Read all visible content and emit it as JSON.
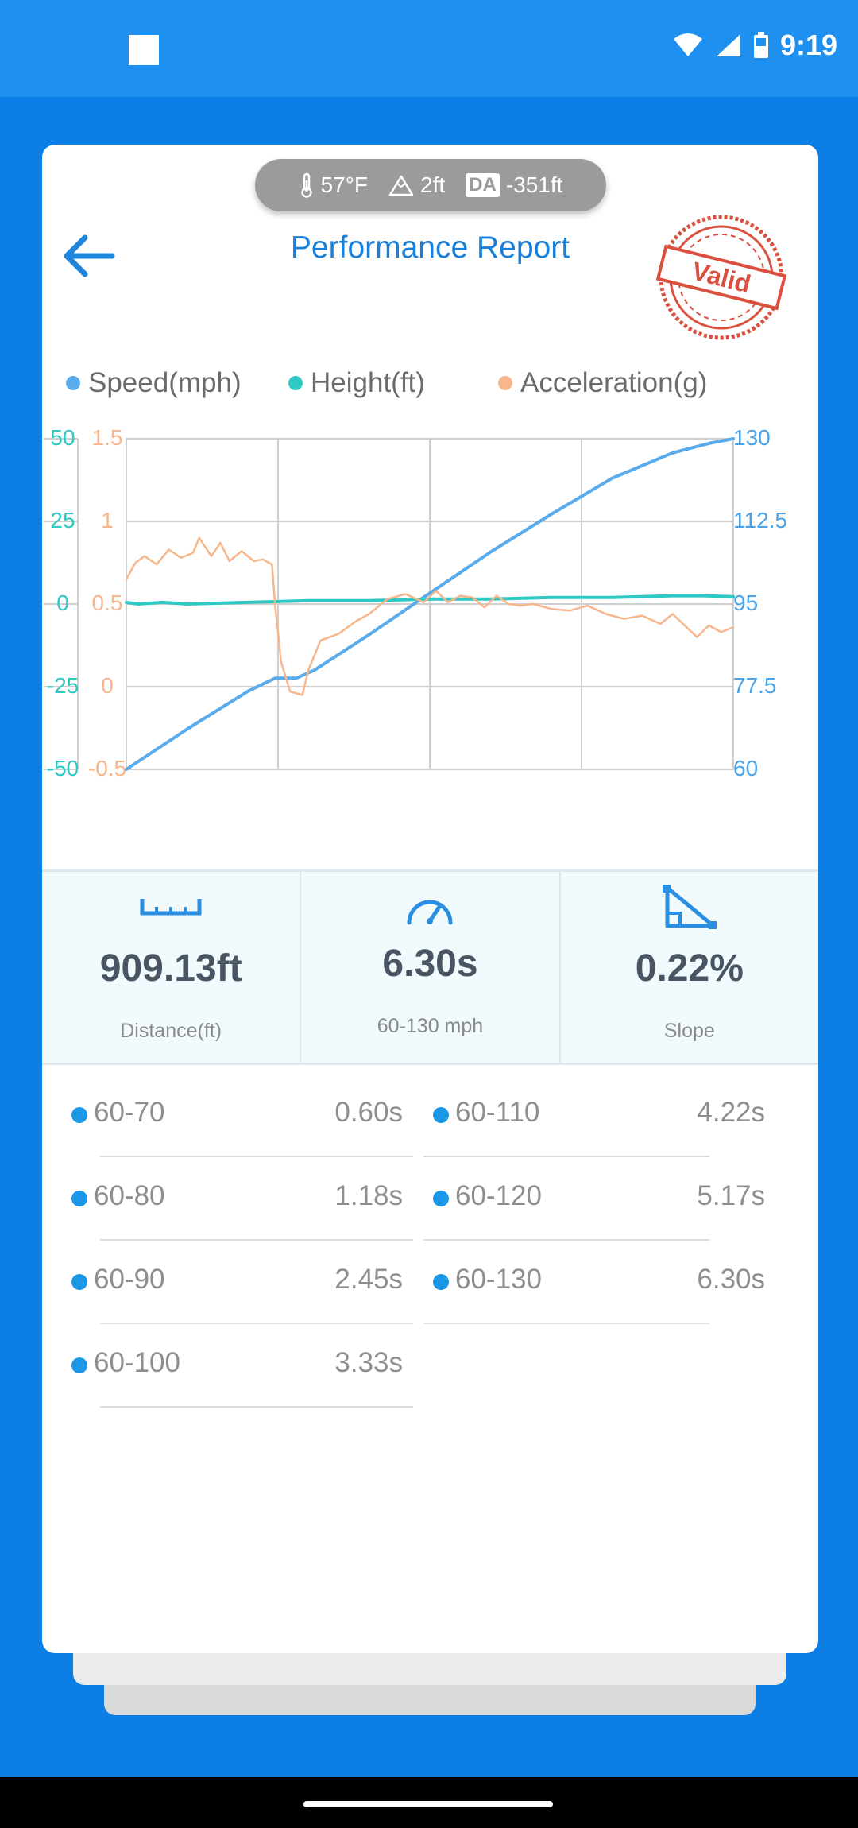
{
  "status_bar": {
    "time": "9:19"
  },
  "header": {
    "temperature": "57°F",
    "altitude": "2ft",
    "density_altitude_badge": "DA",
    "density_altitude": "-351ft",
    "title": "Performance Report",
    "stamp_text": "Valid"
  },
  "chart_data": {
    "type": "line",
    "legend": [
      {
        "name": "Speed(mph)",
        "color": "#5aabeb"
      },
      {
        "name": "Height(ft)",
        "color": "#2ec9c4"
      },
      {
        "name": "Acceleration(g)",
        "color": "#f7b68b"
      }
    ],
    "axes": {
      "height_ticks": [
        "50",
        "25",
        "0",
        "-25",
        "-50"
      ],
      "accel_ticks": [
        "1.5",
        "1",
        "0.5",
        "0",
        "-0.5"
      ],
      "speed_ticks": [
        "130",
        "112.5",
        "95",
        "77.5",
        "60"
      ],
      "height_range": [
        -50,
        50
      ],
      "accel_range": [
        -0.5,
        1.5
      ],
      "speed_range": [
        60,
        130
      ]
    },
    "x_range": [
      0,
      1
    ],
    "series": [
      {
        "name": "Speed(mph)",
        "color": "#5aabeb",
        "x": [
          0,
          0.1,
          0.2,
          0.245,
          0.28,
          0.31,
          0.4,
          0.5,
          0.6,
          0.7,
          0.8,
          0.9,
          0.96,
          1.0
        ],
        "values": [
          60,
          68.5,
          76.5,
          79.3,
          79.3,
          81.0,
          88.5,
          97.3,
          106.0,
          114.0,
          121.6,
          127.0,
          129.0,
          130.0
        ]
      },
      {
        "name": "Height(ft)",
        "color": "#2ec9c4",
        "x": [
          0,
          0.02,
          0.06,
          0.1,
          0.2,
          0.3,
          0.4,
          0.5,
          0.6,
          0.7,
          0.8,
          0.9,
          0.95,
          1.0
        ],
        "values": [
          0.5,
          0.0,
          0.5,
          0.0,
          0.5,
          1.0,
          1.0,
          1.5,
          1.5,
          2.0,
          2.0,
          2.5,
          2.5,
          2.2
        ]
      },
      {
        "name": "Acceleration(g)",
        "color": "#f7b68b",
        "x": [
          0,
          0.015,
          0.03,
          0.05,
          0.07,
          0.09,
          0.11,
          0.12,
          0.14,
          0.155,
          0.17,
          0.19,
          0.21,
          0.225,
          0.24,
          0.245,
          0.255,
          0.27,
          0.29,
          0.3,
          0.32,
          0.35,
          0.38,
          0.4,
          0.43,
          0.46,
          0.49,
          0.51,
          0.53,
          0.55,
          0.57,
          0.59,
          0.61,
          0.63,
          0.65,
          0.67,
          0.7,
          0.73,
          0.76,
          0.79,
          0.82,
          0.85,
          0.88,
          0.9,
          0.92,
          0.94,
          0.96,
          0.98,
          1.0
        ],
        "values": [
          0.65,
          0.75,
          0.79,
          0.74,
          0.83,
          0.78,
          0.81,
          0.9,
          0.79,
          0.87,
          0.76,
          0.82,
          0.76,
          0.77,
          0.74,
          0.5,
          0.15,
          -0.03,
          -0.05,
          0.1,
          0.28,
          0.32,
          0.4,
          0.44,
          0.53,
          0.56,
          0.51,
          0.58,
          0.51,
          0.55,
          0.54,
          0.48,
          0.55,
          0.5,
          0.49,
          0.5,
          0.47,
          0.46,
          0.49,
          0.44,
          0.41,
          0.43,
          0.38,
          0.44,
          0.37,
          0.3,
          0.37,
          0.33,
          0.36
        ]
      }
    ]
  },
  "metrics": {
    "distance_value": "909.13ft",
    "distance_label": "Distance(ft)",
    "time_value": "6.30s",
    "time_label": "60-130 mph",
    "slope_value": "0.22%",
    "slope_label": "Slope"
  },
  "splits": [
    {
      "range": "60-70",
      "time": "0.60s"
    },
    {
      "range": "60-80",
      "time": "1.18s"
    },
    {
      "range": "60-90",
      "time": "2.45s"
    },
    {
      "range": "60-100",
      "time": "3.33s"
    },
    {
      "range": "60-110",
      "time": "4.22s"
    },
    {
      "range": "60-120",
      "time": "5.17s"
    },
    {
      "range": "60-130",
      "time": "6.30s"
    }
  ]
}
